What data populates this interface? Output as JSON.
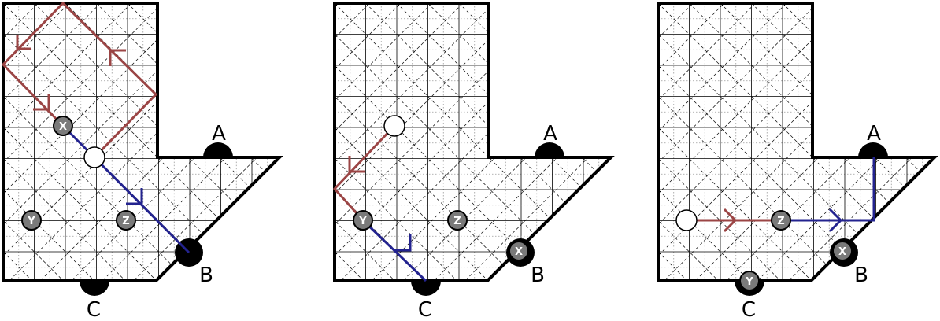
{
  "colors": {
    "outline": "#000000",
    "grid_solid": "#000000",
    "grid_dotted": "#9a9a9a",
    "diag_dashed": "#000000",
    "path_red": "#9b4545",
    "path_blue": "#23238f",
    "token": "#7a7a7a",
    "empty_token": "#ffffff",
    "port": "#000000"
  },
  "labels": {
    "port_a": "A",
    "port_b": "B",
    "port_c": "C",
    "token_x": "X",
    "token_y": "Y",
    "token_z": "Z"
  },
  "panels": [
    {
      "id": "panel-1"
    },
    {
      "id": "panel-2"
    },
    {
      "id": "panel-3"
    }
  ]
}
